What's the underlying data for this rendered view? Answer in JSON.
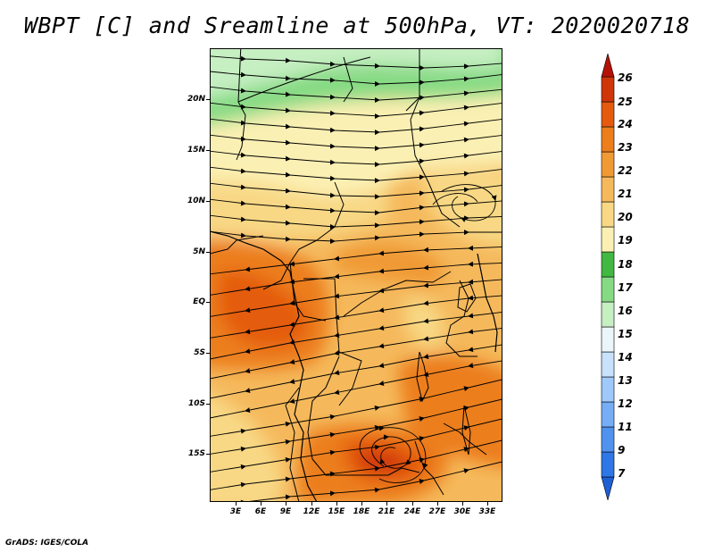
{
  "title": "WBPT [C] and Sreamline at 500hPa, VT: 2020020718",
  "credit": "GrADS: IGES/COLA",
  "map": {
    "lat_labels": [
      "20N",
      "15N",
      "10N",
      "5N",
      "EQ",
      "5S",
      "10S",
      "15S"
    ],
    "lon_labels": [
      "3E",
      "6E",
      "9E",
      "12E",
      "15E",
      "18E",
      "21E",
      "24E",
      "27E",
      "30E",
      "33E"
    ]
  },
  "colorbar": {
    "labels": [
      "7",
      "9",
      "11",
      "12",
      "13",
      "14",
      "15",
      "16",
      "17",
      "18",
      "19",
      "20",
      "21",
      "22",
      "23",
      "24",
      "25",
      "26"
    ],
    "colors": [
      "#1f5fd6",
      "#2f76e6",
      "#4f93ef",
      "#76adf5",
      "#9fc9fa",
      "#c8e2fc",
      "#eaf6f9",
      "#c6efc2",
      "#86da84",
      "#41b842",
      "#fbf0b3",
      "#f8d885",
      "#f5b95c",
      "#f09a34",
      "#ec7e1c",
      "#e45b10",
      "#d0350a",
      "#b51205"
    ]
  }
}
